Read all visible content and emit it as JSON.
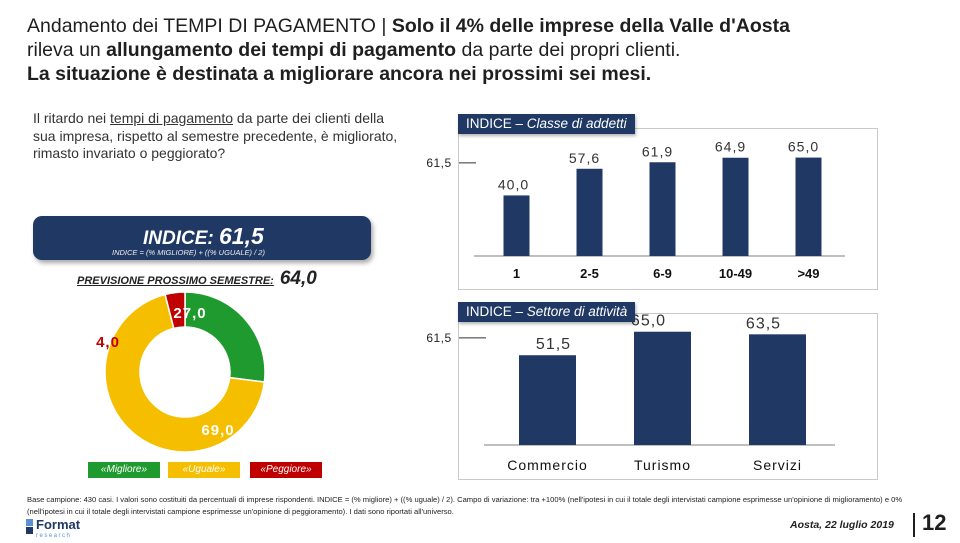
{
  "title": {
    "line1_pre": "Andamento dei TEMPI DI PAGAMENTO | ",
    "line1_bold": "Solo il 4% delle imprese della Valle d'Aosta",
    "line2_pre": "rileva un ",
    "line2_bold": "allungamento dei tempi di pagamento",
    "line2_post": " da parte dei propri clienti.",
    "line3": "La situazione è destinata a migliorare ancora nei prossimi sei mesi."
  },
  "question": {
    "pre": "Il ritardo nei ",
    "underlined": "tempi di pagamento",
    "post": " da parte dei clienti della sua impresa, rispetto al semestre precedente, è migliorato, rimasto invariato o peggiorato?"
  },
  "index": {
    "label": "INDICE: ",
    "value": "61,5",
    "formula": "INDICE = (% MIGLIORE) + ((% UGUALE) / 2)"
  },
  "forecast": {
    "label": "PREVISIONE PROSSIMO SEMESTRE:",
    "value": "64,0"
  },
  "colors": {
    "navy": "#1f3864",
    "green": "#1f9a2e",
    "red": "#c00000",
    "yellow": "#f5bf00",
    "bar": "#1f3864"
  },
  "chart_data": [
    {
      "type": "pie",
      "donut": true,
      "categories": [
        "«Migliore»",
        "«Uguale»",
        "«Peggiore»"
      ],
      "values": [
        27.0,
        69.0,
        4.0
      ],
      "value_labels": [
        "27,0",
        "69,0",
        "4,0"
      ],
      "colors": [
        "#1f9a2e",
        "#f5bf00",
        "#c00000"
      ]
    },
    {
      "type": "bar",
      "title_pre": "INDICE – ",
      "title_italic": "Classe di addetti",
      "categories": [
        "1",
        "2-5",
        "6-9",
        "10-49",
        ">49"
      ],
      "values": [
        40.0,
        57.6,
        61.9,
        64.9,
        65.0
      ],
      "value_labels": [
        "40,0",
        "57,6",
        "61,9",
        "64,9",
        "65,0"
      ],
      "reference_value": 61.5,
      "reference_label": "61,5",
      "ylim": [
        0,
        70
      ]
    },
    {
      "type": "bar",
      "title_pre": "INDICE – ",
      "title_italic": "Settore di attività",
      "categories": [
        "Commercio",
        "Turismo",
        "Servizi"
      ],
      "values": [
        51.5,
        65.0,
        63.5
      ],
      "value_labels": [
        "51,5",
        "65,0",
        "63,5"
      ],
      "reference_value": 61.5,
      "reference_label": "61,5",
      "ylim": [
        0,
        70
      ]
    }
  ],
  "footnote": "Base campione: 430 casi. I valori sono costituiti da percentuali di imprese rispondenti. INDICE = (% migliore) + ((% uguale) / 2). Campo di variazione: tra +100% (nell'ipotesi in cui il totale degli intervistati campione esprimesse un'opinione di miglioramento) e 0% (nell'ipotesi in cui il totale degli intervistati campione esprimesse un'opinione di peggioramento). I dati sono riportati all'universo.",
  "logo": {
    "name": "Format",
    "sub": "research"
  },
  "date": "Aosta, 22 luglio 2019",
  "page_number": "12"
}
